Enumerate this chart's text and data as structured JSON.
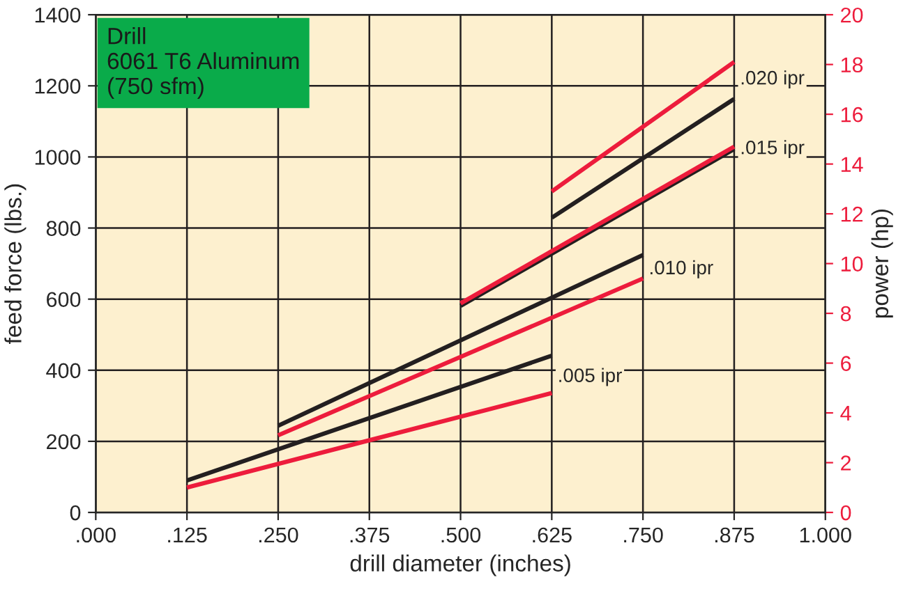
{
  "chart_data": {
    "type": "line",
    "xlabel": "drill diameter (inches)",
    "ylabel": "feed force (lbs.)",
    "y2label": "power (hp)",
    "xlim": [
      0,
      1
    ],
    "xticks": [
      {
        "value": 0,
        "label": ".000"
      },
      {
        "value": 0.125,
        "label": ".125"
      },
      {
        "value": 0.25,
        "label": ".250"
      },
      {
        "value": 0.375,
        "label": ".375"
      },
      {
        "value": 0.5,
        "label": ".500"
      },
      {
        "value": 0.625,
        "label": ".625"
      },
      {
        "value": 0.75,
        "label": ".750"
      },
      {
        "value": 0.875,
        "label": ".875"
      },
      {
        "value": 1,
        "label": "1.000"
      }
    ],
    "ylim": [
      0,
      1400
    ],
    "yticks": [
      0,
      200,
      400,
      600,
      800,
      1000,
      1200,
      1400
    ],
    "y2lim": [
      0,
      20
    ],
    "y2ticks": [
      0,
      2,
      4,
      6,
      8,
      10,
      12,
      14,
      16,
      18,
      20
    ],
    "grid": true,
    "legend": false,
    "series": [
      {
        "color": "#231f20",
        "x": [
          0.125,
          0.625
        ],
        "values": [
          90,
          441
        ]
      },
      {
        "color": "#231f20",
        "x": [
          0.25,
          0.75
        ],
        "values": [
          244,
          724
        ]
      },
      {
        "color": "#231f20",
        "x": [
          0.5,
          0.875
        ],
        "values": [
          581,
          1022
        ]
      },
      {
        "color": "#231f20",
        "x": [
          0.625,
          0.875
        ],
        "values": [
          829,
          1163
        ]
      },
      {
        "color": "#ed1c3c",
        "axis": "y2",
        "x": [
          0.125,
          0.625
        ],
        "values": [
          1.0,
          4.8
        ]
      },
      {
        "color": "#ed1c3c",
        "axis": "y2",
        "x": [
          0.25,
          0.75
        ],
        "values": [
          3.1,
          9.4
        ]
      },
      {
        "color": "#ed1c3c",
        "axis": "y2",
        "x": [
          0.5,
          0.875
        ],
        "values": [
          8.4,
          14.7
        ]
      },
      {
        "color": "#ed1c3c",
        "axis": "y2",
        "x": [
          0.625,
          0.875
        ],
        "values": [
          12.9,
          18.1
        ]
      }
    ],
    "annotations": [
      "Drill\n6061 T6 Aluminum\n(750 sfm)",
      ".005 ipr",
      ".010 ipr",
      ".015 ipr",
      ".020 ipr"
    ]
  }
}
